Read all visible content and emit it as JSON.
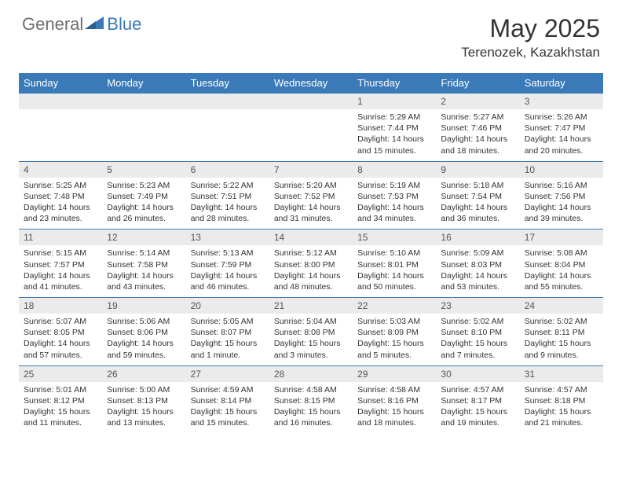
{
  "brand": {
    "text1": "General",
    "text2": "Blue",
    "color_general": "#6d6e71",
    "color_blue": "#3a7ab8"
  },
  "title": "May 2025",
  "location": "Terenozek, Kazakhstan",
  "header_bg": "#3a7ab8",
  "header_fg": "#ffffff",
  "daynum_bg": "#ebebeb",
  "border_color": "#3a7ab8",
  "weekdays": [
    "Sunday",
    "Monday",
    "Tuesday",
    "Wednesday",
    "Thursday",
    "Friday",
    "Saturday"
  ],
  "weeks": [
    {
      "nums": [
        "",
        "",
        "",
        "",
        "1",
        "2",
        "3"
      ],
      "details": [
        "",
        "",
        "",
        "",
        "Sunrise: 5:29 AM\nSunset: 7:44 PM\nDaylight: 14 hours and 15 minutes.",
        "Sunrise: 5:27 AM\nSunset: 7:46 PM\nDaylight: 14 hours and 18 minutes.",
        "Sunrise: 5:26 AM\nSunset: 7:47 PM\nDaylight: 14 hours and 20 minutes."
      ]
    },
    {
      "nums": [
        "4",
        "5",
        "6",
        "7",
        "8",
        "9",
        "10"
      ],
      "details": [
        "Sunrise: 5:25 AM\nSunset: 7:48 PM\nDaylight: 14 hours and 23 minutes.",
        "Sunrise: 5:23 AM\nSunset: 7:49 PM\nDaylight: 14 hours and 26 minutes.",
        "Sunrise: 5:22 AM\nSunset: 7:51 PM\nDaylight: 14 hours and 28 minutes.",
        "Sunrise: 5:20 AM\nSunset: 7:52 PM\nDaylight: 14 hours and 31 minutes.",
        "Sunrise: 5:19 AM\nSunset: 7:53 PM\nDaylight: 14 hours and 34 minutes.",
        "Sunrise: 5:18 AM\nSunset: 7:54 PM\nDaylight: 14 hours and 36 minutes.",
        "Sunrise: 5:16 AM\nSunset: 7:56 PM\nDaylight: 14 hours and 39 minutes."
      ]
    },
    {
      "nums": [
        "11",
        "12",
        "13",
        "14",
        "15",
        "16",
        "17"
      ],
      "details": [
        "Sunrise: 5:15 AM\nSunset: 7:57 PM\nDaylight: 14 hours and 41 minutes.",
        "Sunrise: 5:14 AM\nSunset: 7:58 PM\nDaylight: 14 hours and 43 minutes.",
        "Sunrise: 5:13 AM\nSunset: 7:59 PM\nDaylight: 14 hours and 46 minutes.",
        "Sunrise: 5:12 AM\nSunset: 8:00 PM\nDaylight: 14 hours and 48 minutes.",
        "Sunrise: 5:10 AM\nSunset: 8:01 PM\nDaylight: 14 hours and 50 minutes.",
        "Sunrise: 5:09 AM\nSunset: 8:03 PM\nDaylight: 14 hours and 53 minutes.",
        "Sunrise: 5:08 AM\nSunset: 8:04 PM\nDaylight: 14 hours and 55 minutes."
      ]
    },
    {
      "nums": [
        "18",
        "19",
        "20",
        "21",
        "22",
        "23",
        "24"
      ],
      "details": [
        "Sunrise: 5:07 AM\nSunset: 8:05 PM\nDaylight: 14 hours and 57 minutes.",
        "Sunrise: 5:06 AM\nSunset: 8:06 PM\nDaylight: 14 hours and 59 minutes.",
        "Sunrise: 5:05 AM\nSunset: 8:07 PM\nDaylight: 15 hours and 1 minute.",
        "Sunrise: 5:04 AM\nSunset: 8:08 PM\nDaylight: 15 hours and 3 minutes.",
        "Sunrise: 5:03 AM\nSunset: 8:09 PM\nDaylight: 15 hours and 5 minutes.",
        "Sunrise: 5:02 AM\nSunset: 8:10 PM\nDaylight: 15 hours and 7 minutes.",
        "Sunrise: 5:02 AM\nSunset: 8:11 PM\nDaylight: 15 hours and 9 minutes."
      ]
    },
    {
      "nums": [
        "25",
        "26",
        "27",
        "28",
        "29",
        "30",
        "31"
      ],
      "details": [
        "Sunrise: 5:01 AM\nSunset: 8:12 PM\nDaylight: 15 hours and 11 minutes.",
        "Sunrise: 5:00 AM\nSunset: 8:13 PM\nDaylight: 15 hours and 13 minutes.",
        "Sunrise: 4:59 AM\nSunset: 8:14 PM\nDaylight: 15 hours and 15 minutes.",
        "Sunrise: 4:58 AM\nSunset: 8:15 PM\nDaylight: 15 hours and 16 minutes.",
        "Sunrise: 4:58 AM\nSunset: 8:16 PM\nDaylight: 15 hours and 18 minutes.",
        "Sunrise: 4:57 AM\nSunset: 8:17 PM\nDaylight: 15 hours and 19 minutes.",
        "Sunrise: 4:57 AM\nSunset: 8:18 PM\nDaylight: 15 hours and 21 minutes."
      ]
    }
  ]
}
